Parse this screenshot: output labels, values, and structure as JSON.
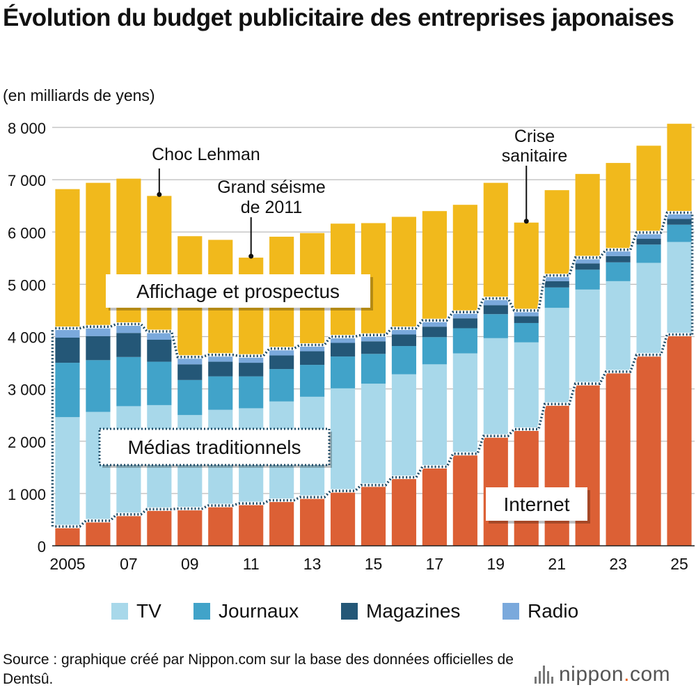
{
  "title": "Évolution du budget publicitaire des entreprises japonaises",
  "unit_label": "(en milliards de yens)",
  "colors": {
    "internet": "#dc6035",
    "tv": "#a8d8ea",
    "journaux": "#41a3c9",
    "magazines": "#245777",
    "radio": "#7aa9dc",
    "affichage": "#f1b91c",
    "grid": "#bbbbbb"
  },
  "legend": [
    {
      "label": "TV",
      "color": "#a8d8ea"
    },
    {
      "label": "Journaux",
      "color": "#41a3c9"
    },
    {
      "label": "Magazines",
      "color": "#245777"
    },
    {
      "label": "Radio",
      "color": "#7aa9dc"
    }
  ],
  "source": "Source : graphique créé par Nippon.com sur la base des données officielles de Dentsû.",
  "logo": {
    "name": "nippon",
    "dot": ".",
    "tld": "com"
  },
  "chart_data": {
    "type": "bar",
    "stacked": true,
    "ylim": [
      0,
      8000
    ],
    "yticks": [
      {
        "value": 0,
        "label": "0"
      },
      {
        "value": 1000,
        "label": "1 000"
      },
      {
        "value": 2000,
        "label": "2 000"
      },
      {
        "value": 3000,
        "label": "3 000"
      },
      {
        "value": 4000,
        "label": "4 000"
      },
      {
        "value": 5000,
        "label": "5 000"
      },
      {
        "value": 6000,
        "label": "6 000"
      },
      {
        "value": 7000,
        "label": "7 000"
      },
      {
        "value": 8000,
        "label": "8 000"
      }
    ],
    "grid": true,
    "categories": [
      "2005",
      "2006",
      "2007",
      "2008",
      "2009",
      "2010",
      "2011",
      "2012",
      "2013",
      "2014",
      "2015",
      "2016",
      "2017",
      "2018",
      "2019",
      "2020",
      "2021",
      "2022",
      "2023",
      "2024",
      "2025"
    ],
    "tick_labels": [
      "2005",
      "",
      "07",
      "",
      "09",
      "",
      "11",
      "",
      "13",
      "",
      "15",
      "",
      "17",
      "",
      "19",
      "",
      "21",
      "",
      "23",
      "",
      "25"
    ],
    "series": [
      {
        "name": "Internet",
        "key": "internet",
        "values": [
          370,
          480,
          600,
          700,
          710,
          770,
          810,
          870,
          930,
          1050,
          1160,
          1310,
          1510,
          1760,
          2100,
          2230,
          2710,
          3100,
          3330,
          3650,
          4040
        ]
      },
      {
        "name": "TV",
        "key": "tv",
        "values": [
          2090,
          2080,
          2070,
          1990,
          1790,
          1830,
          1820,
          1890,
          1920,
          1960,
          1940,
          1970,
          1960,
          1920,
          1870,
          1660,
          1840,
          1800,
          1730,
          1760,
          1770
        ]
      },
      {
        "name": "Journaux",
        "key": "journaux",
        "values": [
          1040,
          990,
          940,
          830,
          670,
          640,
          610,
          620,
          610,
          610,
          570,
          540,
          520,
          480,
          460,
          370,
          390,
          380,
          360,
          350,
          330
        ]
      },
      {
        "name": "Magazines",
        "key": "magazines",
        "values": [
          480,
          460,
          460,
          420,
          300,
          280,
          260,
          260,
          260,
          260,
          240,
          220,
          200,
          190,
          170,
          130,
          120,
          120,
          120,
          110,
          110
        ]
      },
      {
        "name": "Radio",
        "key": "radio",
        "values": [
          180,
          180,
          170,
          160,
          140,
          130,
          130,
          130,
          120,
          120,
          120,
          120,
          120,
          120,
          130,
          110,
          110,
          110,
          120,
          120,
          120
        ]
      },
      {
        "name": "Affichage et prospectus",
        "key": "affichage",
        "values": [
          2660,
          2750,
          2780,
          2590,
          2310,
          2200,
          1880,
          2140,
          2140,
          2160,
          2140,
          2130,
          2090,
          2050,
          2210,
          1680,
          1630,
          1600,
          1660,
          1660,
          1700
        ]
      }
    ],
    "group_labels": {
      "affichage": "Affichage et prospectus",
      "traditional": "Médias traditionnels",
      "internet": "Internet"
    },
    "annotations": [
      {
        "text": [
          "Choc Lehman"
        ],
        "index": 3
      },
      {
        "text": [
          "Grand séisme",
          "de 2011"
        ],
        "index": 6
      },
      {
        "text": [
          "Crise",
          "sanitaire"
        ],
        "index": 15
      }
    ]
  }
}
